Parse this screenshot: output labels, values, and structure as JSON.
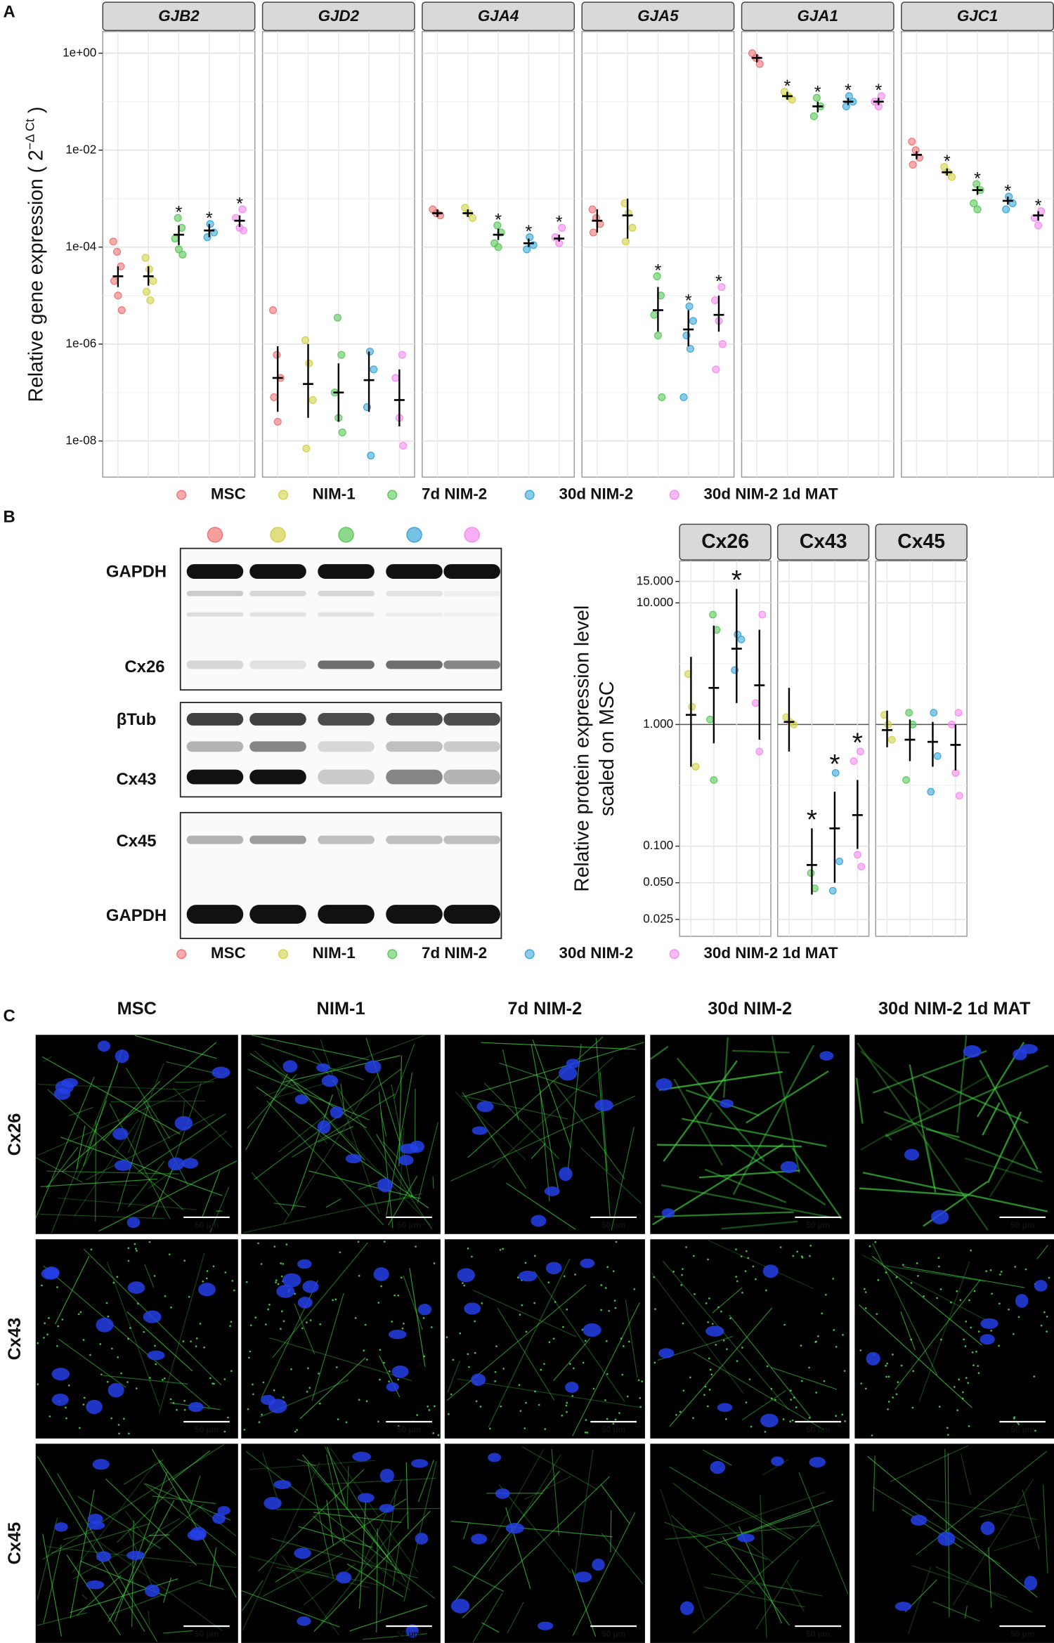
{
  "panel_labels": [
    "A",
    "B",
    "C"
  ],
  "chart_data": [
    {
      "type": "strip",
      "y_label": "Relative gene expression ( 2",
      "y_label_superscript": "−Δ Ct",
      "y_label_end": " )",
      "log_y": true,
      "grid": true,
      "legend_position": "bottom",
      "ylim": [
        1.8e-09,
        2.8
      ],
      "yticks": [
        {
          "value": 1,
          "label": "1e+00"
        },
        {
          "value": 0.01,
          "label": "1e-02"
        },
        {
          "value": 0.0001,
          "label": "1e-04"
        },
        {
          "value": 1e-06,
          "label": "1e-06"
        },
        {
          "value": 1e-08,
          "label": "1e-08"
        }
      ],
      "series": [
        {
          "name": "MSC",
          "color": "#f07575"
        },
        {
          "name": "NIM-1",
          "color": "#d2d24a"
        },
        {
          "name": "7d NIM-2",
          "color": "#5cc85c"
        },
        {
          "name": "30d NIM-2",
          "color": "#3aa8d8"
        },
        {
          "name": "30d NIM-2 1d MAT",
          "color": "#f58cf0"
        }
      ],
      "facets": [
        {
          "title": "GJB2",
          "groups": [
            {
              "mean": 2.5e-05,
              "err_low": 1.5e-05,
              "err_high": 4e-05,
              "points": [
                0.00013,
                8e-05,
                4e-05,
                2e-05,
                1e-05,
                5e-06
              ],
              "significance": null
            },
            {
              "mean": 2.5e-05,
              "err_low": 1.6e-05,
              "err_high": 4e-05,
              "points": [
                6e-05,
                3.5e-05,
                2e-05,
                1.2e-05,
                8e-06
              ],
              "significance": null
            },
            {
              "mean": 0.00018,
              "err_low": 0.00011,
              "err_high": 0.00028,
              "points": [
                0.0004,
                0.00025,
                0.00015,
                9e-05,
                7e-05
              ],
              "significance": "*"
            },
            {
              "mean": 0.00022,
              "err_low": 0.00016,
              "err_high": 0.0003,
              "points": [
                0.0003,
                0.0002,
                0.00016
              ],
              "significance": "*"
            },
            {
              "mean": 0.00035,
              "err_low": 0.00026,
              "err_high": 0.00045,
              "points": [
                0.0006,
                0.0004,
                0.00025,
                0.00022
              ],
              "significance": "*"
            }
          ]
        },
        {
          "title": "GJD2",
          "groups": [
            {
              "mean": 2e-07,
              "err_low": 4e-08,
              "err_high": 9e-07,
              "points": [
                5e-06,
                6e-07,
                2e-07,
                8e-08,
                2.5e-08
              ],
              "significance": null
            },
            {
              "mean": 1.5e-07,
              "err_low": 3e-08,
              "err_high": 1e-06,
              "points": [
                1.2e-06,
                4e-07,
                7e-08,
                7e-09
              ],
              "significance": null
            },
            {
              "mean": 1e-07,
              "err_low": 2.5e-08,
              "err_high": 4e-07,
              "points": [
                3.5e-06,
                6e-07,
                1e-07,
                3e-08,
                1.5e-08
              ],
              "significance": null
            },
            {
              "mean": 1.8e-07,
              "err_low": 4e-08,
              "err_high": 7e-07,
              "points": [
                7e-07,
                3e-07,
                5e-08,
                5e-09
              ],
              "significance": null
            },
            {
              "mean": 7e-08,
              "err_low": 2e-08,
              "err_high": 3e-07,
              "points": [
                6e-07,
                2e-07,
                3e-08,
                8e-09
              ],
              "significance": null
            }
          ]
        },
        {
          "title": "GJA4",
          "groups": [
            {
              "mean": 0.0005,
              "err_low": 0.00042,
              "err_high": 0.0006,
              "points": [
                0.0006,
                0.0005,
                0.00045
              ],
              "significance": null
            },
            {
              "mean": 0.0005,
              "err_low": 0.00042,
              "err_high": 0.0006,
              "points": [
                0.00065,
                0.0005,
                0.0004
              ],
              "significance": null
            },
            {
              "mean": 0.00018,
              "err_low": 0.00014,
              "err_high": 0.00024,
              "points": [
                0.00028,
                0.0002,
                0.00012,
                0.0001
              ],
              "significance": "*"
            },
            {
              "mean": 0.00012,
              "err_low": 0.0001,
              "err_high": 0.00015,
              "points": [
                0.00016,
                0.00011,
                9e-05
              ],
              "significance": "*"
            },
            {
              "mean": 0.00015,
              "err_low": 0.00013,
              "err_high": 0.00018,
              "points": [
                0.00025,
                0.00016,
                0.00012
              ],
              "significance": "*"
            }
          ]
        },
        {
          "title": "GJA5",
          "groups": [
            {
              "mean": 0.00035,
              "err_low": 0.0002,
              "err_high": 0.0006,
              "points": [
                0.0006,
                0.0004,
                0.0003,
                0.0002
              ],
              "significance": null
            },
            {
              "mean": 0.00045,
              "err_low": 0.00015,
              "err_high": 0.001,
              "points": [
                0.0008,
                0.0005,
                0.00025,
                0.00013
              ],
              "significance": null
            },
            {
              "mean": 5e-06,
              "err_low": 1.8e-06,
              "err_high": 1.5e-05,
              "points": [
                2.5e-05,
                1e-05,
                4e-06,
                1.5e-06,
                8e-08
              ],
              "significance": "*"
            },
            {
              "mean": 2e-06,
              "err_low": 9e-07,
              "err_high": 5e-06,
              "points": [
                6e-06,
                3e-06,
                1.5e-06,
                8e-07,
                8e-08
              ],
              "significance": "*"
            },
            {
              "mean": 4e-06,
              "err_low": 1.8e-06,
              "err_high": 1e-05,
              "points": [
                1.5e-05,
                8e-06,
                3e-06,
                1e-06,
                3e-07
              ],
              "significance": "*"
            }
          ]
        },
        {
          "title": "GJA1",
          "groups": [
            {
              "mean": 0.8,
              "err_low": 0.65,
              "err_high": 0.95,
              "points": [
                1.0,
                0.8,
                0.6
              ],
              "significance": null
            },
            {
              "mean": 0.13,
              "err_low": 0.11,
              "err_high": 0.16,
              "points": [
                0.16,
                0.13,
                0.11
              ],
              "significance": "*"
            },
            {
              "mean": 0.08,
              "err_low": 0.06,
              "err_high": 0.1,
              "points": [
                0.12,
                0.08,
                0.05
              ],
              "significance": "*"
            },
            {
              "mean": 0.1,
              "err_low": 0.085,
              "err_high": 0.12,
              "points": [
                0.13,
                0.1,
                0.08
              ],
              "significance": "*"
            },
            {
              "mean": 0.1,
              "err_low": 0.085,
              "err_high": 0.12,
              "points": [
                0.13,
                0.1,
                0.08
              ],
              "significance": "*"
            }
          ]
        },
        {
          "title": "GJC1",
          "groups": [
            {
              "mean": 0.008,
              "err_low": 0.0065,
              "err_high": 0.0095,
              "points": [
                0.015,
                0.01,
                0.007,
                0.005
              ],
              "significance": null
            },
            {
              "mean": 0.0035,
              "err_low": 0.003,
              "err_high": 0.0042,
              "points": [
                0.0045,
                0.0035,
                0.0028
              ],
              "significance": "*"
            },
            {
              "mean": 0.0015,
              "err_low": 0.0012,
              "err_high": 0.0018,
              "points": [
                0.002,
                0.0015,
                0.0008,
                0.0006
              ],
              "significance": "*"
            },
            {
              "mean": 0.0009,
              "err_low": 0.00075,
              "err_high": 0.0011,
              "points": [
                0.0011,
                0.0008,
                0.0006
              ],
              "significance": "*"
            },
            {
              "mean": 0.00045,
              "err_low": 0.00035,
              "err_high": 0.00055,
              "points": [
                0.00055,
                0.0004,
                0.00028
              ],
              "significance": "*"
            }
          ]
        }
      ]
    },
    {
      "type": "strip",
      "y_label": [
        "Relative protein expression level",
        "scaled on MSC"
      ],
      "log_y": true,
      "grid": true,
      "legend_position": "bottom",
      "hline": 1,
      "ylim": [
        0.01815,
        22.1
      ],
      "yticks": [
        0.025,
        {
          "value": 0.05,
          "label": "0.050"
        },
        {
          "value": 0.1,
          "label": "0.100"
        },
        {
          "value": 1,
          "label": "1.000"
        },
        {
          "value": 10,
          "label": "10.000"
        },
        {
          "value": 15,
          "label": "15.000"
        }
      ],
      "series": [
        {
          "name": "MSC",
          "color": "#f07575"
        },
        {
          "name": "NIM-1",
          "color": "#d2d24a"
        },
        {
          "name": "7d NIM-2",
          "color": "#5cc85c"
        },
        {
          "name": "30d NIM-2",
          "color": "#3aa8d8"
        },
        {
          "name": "30d NIM-2 1d MAT",
          "color": "#f58cf0"
        }
      ],
      "facets": [
        {
          "title": "Cx26",
          "groups": [
            null,
            {
              "mean": 1.2,
              "err_low": 0.45,
              "err_high": 3.6,
              "points": [
                2.6,
                1.4,
                0.45
              ],
              "significance": null
            },
            {
              "mean": 2.0,
              "err_low": 0.7,
              "err_high": 6.5,
              "points": [
                8,
                6,
                1.1,
                0.35
              ],
              "significance": null
            },
            {
              "mean": 4.2,
              "err_low": 1.5,
              "err_high": 13,
              "points": [
                5.5,
                5,
                2.8
              ],
              "significance": "*"
            },
            {
              "mean": 2.1,
              "err_low": 0.75,
              "err_high": 6,
              "points": [
                8,
                1.5,
                0.6
              ],
              "significance": null
            }
          ]
        },
        {
          "title": "Cx43",
          "groups": [
            null,
            {
              "mean": 1.05,
              "err_low": 0.6,
              "err_high": 2.0,
              "points": [
                1.15,
                1.05,
                1.0
              ],
              "significance": null
            },
            {
              "mean": 0.07,
              "err_low": 0.04,
              "err_high": 0.14,
              "points": [
                0.06,
                0.045
              ],
              "significance": "*"
            },
            {
              "mean": 0.14,
              "err_low": 0.05,
              "err_high": 0.28,
              "points": [
                0.4,
                0.075,
                0.043
              ],
              "significance": "*"
            },
            {
              "mean": 0.18,
              "err_low": 0.095,
              "err_high": 0.35,
              "points": [
                0.6,
                0.5,
                0.085,
                0.068
              ],
              "significance": "*"
            }
          ]
        },
        {
          "title": "Cx45",
          "groups": [
            null,
            {
              "mean": 0.9,
              "err_low": 0.65,
              "err_high": 1.3,
              "points": [
                1.2,
                1.0,
                0.75
              ],
              "significance": null
            },
            {
              "mean": 0.75,
              "err_low": 0.5,
              "err_high": 1.1,
              "points": [
                1.25,
                1.0,
                0.35
              ],
              "significance": null
            },
            {
              "mean": 0.72,
              "err_low": 0.45,
              "err_high": 1.05,
              "points": [
                1.25,
                0.55,
                0.28
              ],
              "significance": null
            },
            {
              "mean": 0.68,
              "err_low": 0.42,
              "err_high": 1.0,
              "points": [
                1.25,
                1.0,
                0.4,
                0.26
              ],
              "significance": null
            }
          ]
        }
      ]
    }
  ],
  "blot": {
    "labels": [
      "GAPDH",
      "Cx26",
      "βTub",
      "Cx43",
      "Cx45",
      "GAPDH"
    ]
  },
  "microscopy": {
    "columns": [
      "MSC",
      "NIM-1",
      "7d NIM-2",
      "30d NIM-2",
      "30d NIM-2 1d MAT"
    ],
    "rows": [
      "Cx26",
      "Cx43",
      "Cx45"
    ],
    "scale_bar": "50 µm"
  }
}
